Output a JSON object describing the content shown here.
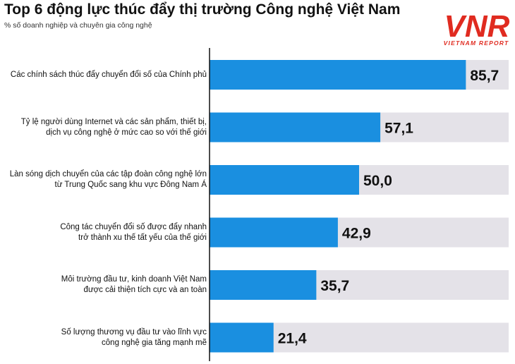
{
  "header": {
    "title": "Top 6 động lực thúc đẩy thị trường Công nghệ Việt Nam",
    "subtitle": "% số doanh nghiệp và chuyên gia công nghệ"
  },
  "logo": {
    "mark_text": "VNR",
    "tagline": "VIETNAM REPORT"
  },
  "chart_data": {
    "type": "bar",
    "orientation": "horizontal",
    "title": "Top 6 động lực thúc đẩy thị trường Công nghệ Việt Nam",
    "subtitle": "% số doanh nghiệp và chuyên gia công nghệ",
    "categories": [
      [
        "Các chính sách thúc đẩy chuyển đổi số của Chính phủ"
      ],
      [
        "Tỷ lệ người dùng Internet và các sản phẩm, thiết bị,",
        "dịch vụ công nghệ ở mức cao so với thế giới"
      ],
      [
        "Làn sóng dịch chuyển của các tập đoàn công nghệ lớn",
        "từ Trung Quốc sang khu vực Đông Nam Á"
      ],
      [
        "Công tác chuyển đổi số được đẩy nhanh",
        "trở thành xu thế tất yếu của thế giới"
      ],
      [
        "Môi trường đầu tư, kinh doanh Việt Nam",
        "được cải thiện tích cực và an toàn"
      ],
      [
        "Số lượng thương vụ đầu tư vào lĩnh vực",
        "công nghệ gia tăng mạnh mẽ"
      ]
    ],
    "values": [
      85.7,
      57.1,
      50.0,
      42.9,
      35.7,
      21.4
    ],
    "value_labels": [
      "85,7",
      "57,1",
      "50,0",
      "42,9",
      "35,7",
      "21,4"
    ],
    "xlim": [
      0,
      100
    ],
    "bar_color": "#1a8fe0",
    "background_bar_color": "#e4e2e8",
    "axis_color": "#111111",
    "grid": false,
    "legend": "none"
  }
}
